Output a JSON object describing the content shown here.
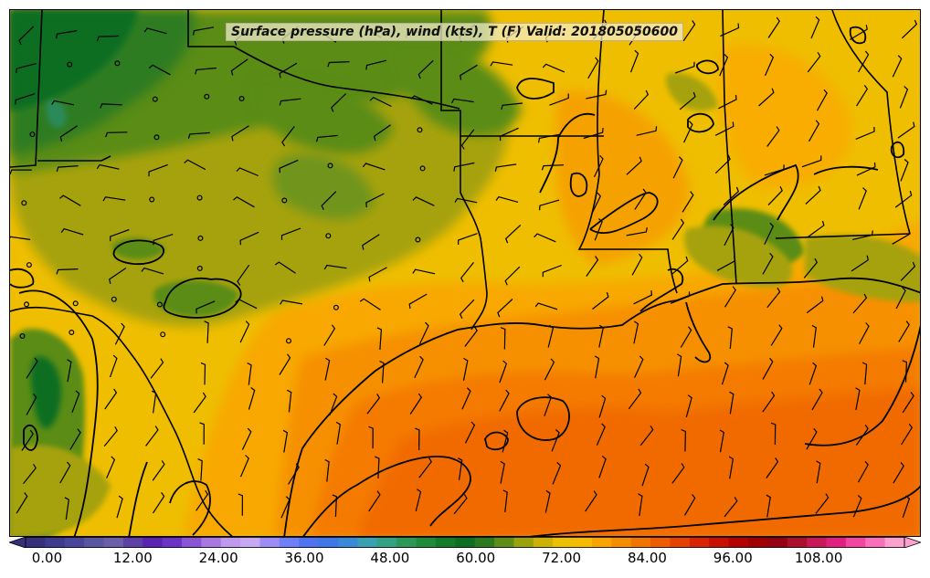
{
  "title": "Surface pressure (hPa), wind (kts), T (F) Valid: 201805050600",
  "colorbar": {
    "tick_labels": [
      "0.00",
      "12.00",
      "24.00",
      "36.00",
      "48.00",
      "60.00",
      "72.00",
      "84.00",
      "96.00",
      "108.00"
    ],
    "tick_values": [
      0,
      12,
      24,
      36,
      48,
      60,
      72,
      84,
      96,
      108
    ],
    "range": [
      -3,
      120
    ],
    "step": 3,
    "extend": "both",
    "colors": [
      "#36307a",
      "#3e3a8d",
      "#4a479a",
      "#5a56a2",
      "#6a5fa8",
      "#5e3fa6",
      "#5a24b3",
      "#6c34c4",
      "#8a55d4",
      "#a877e0",
      "#bf99ec",
      "#c7a8f2",
      "#9b8cf6",
      "#6f7ff6",
      "#4f74f1",
      "#3f78e6",
      "#3a8ad8",
      "#3aa0b2",
      "#34a084",
      "#2c9858",
      "#1f8a3a",
      "#127c2a",
      "#0d6e22",
      "#2a7a20",
      "#5f8d18",
      "#9aa30e",
      "#ccb106",
      "#ebc000",
      "#f5bb00",
      "#f7a300",
      "#f58d00",
      "#f27400",
      "#ee5c00",
      "#e54200",
      "#d82400",
      "#c71000",
      "#b50000",
      "#a00000",
      "#950010",
      "#a8102c",
      "#c81858",
      "#e02080",
      "#f048a0",
      "#f870b8",
      "#fca0d0"
    ]
  }
}
